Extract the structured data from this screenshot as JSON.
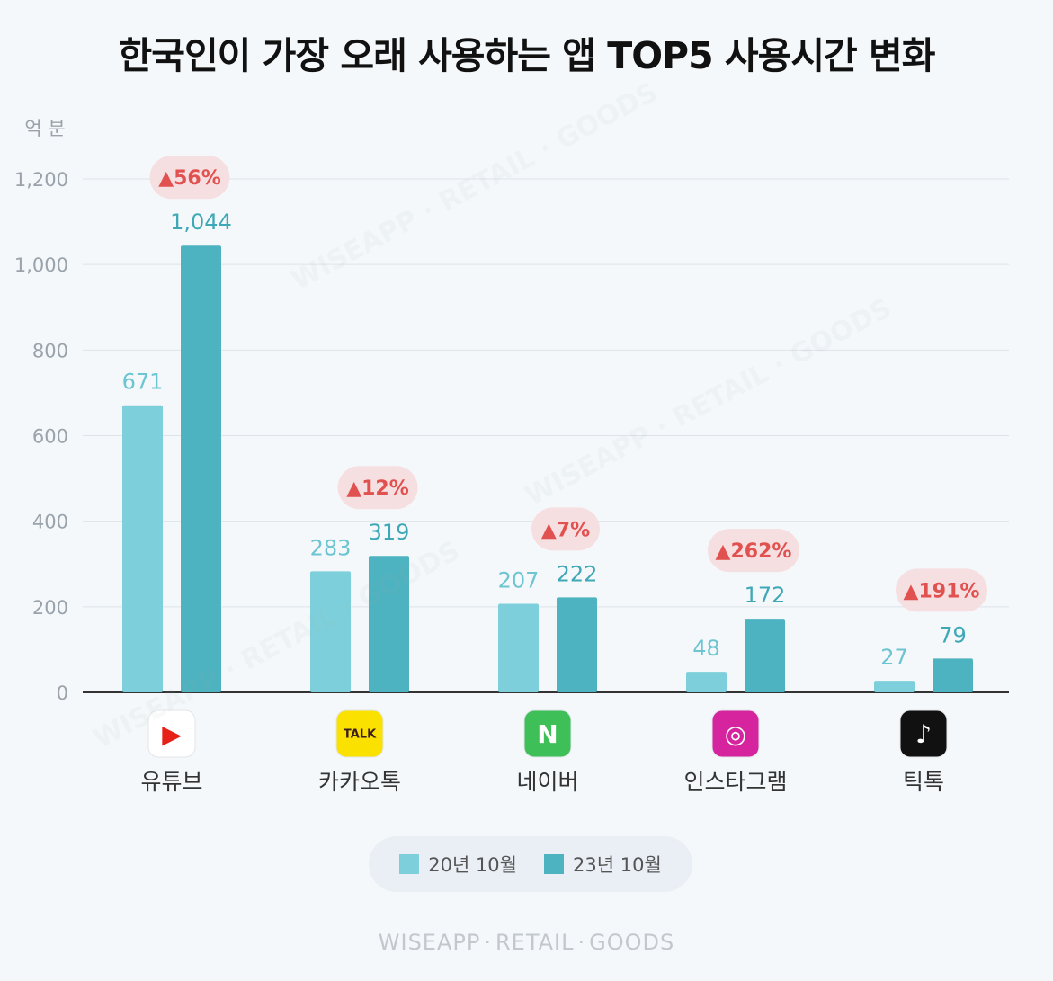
{
  "title": "한국인이 가장 오래 사용하는 앱 TOP5 사용시간 변화",
  "chart_data": {
    "type": "bar",
    "title": "한국인이 가장 오래 사용하는 앱 TOP5 사용시간 변화",
    "ylabel": "억 분",
    "xlabel": "",
    "ylim": [
      0,
      1200
    ],
    "yticks": [
      "1,200",
      "1,000",
      "800",
      "600",
      "400",
      "200",
      "0"
    ],
    "categories": [
      "유튜브",
      "카카오톡",
      "네이버",
      "인스타그램",
      "틱톡"
    ],
    "series": [
      {
        "name": "20년 10월",
        "values": [
          671,
          283,
          207,
          48,
          27
        ],
        "labels": [
          "671",
          "283",
          "207",
          "48",
          "27"
        ],
        "color": "#7dd0db"
      },
      {
        "name": "23년 10월",
        "values": [
          1044,
          319,
          222,
          172,
          79
        ],
        "labels": [
          "1,044",
          "319",
          "222",
          "172",
          "79"
        ],
        "color": "#4eb3c0"
      }
    ],
    "change": [
      "56%",
      "12%",
      "7%",
      "262%",
      "191%"
    ],
    "change_color": "#e0514f",
    "grid": true
  },
  "apps": [
    {
      "icon": "youtube-icon",
      "icon_text": "▶",
      "bg": "#ffffff",
      "fg": "#e62117"
    },
    {
      "icon": "kakaotalk-icon",
      "icon_text": "TALK",
      "bg": "#fae100",
      "fg": "#3b1e1e"
    },
    {
      "icon": "naver-icon",
      "icon_text": "N",
      "bg": "#3fbf58",
      "fg": "#ffffff"
    },
    {
      "icon": "instagram-icon",
      "icon_text": "◎",
      "bg": "#d6249f",
      "fg": "#ffffff"
    },
    {
      "icon": "tiktok-icon",
      "icon_text": "♪",
      "bg": "#111111",
      "fg": "#ffffff"
    }
  ],
  "legend": {
    "item1": "20년 10월",
    "item2": "23년 10월"
  },
  "footer": {
    "part1": "WISEAPP",
    "sep": "·",
    "part2": "RETAIL",
    "part3": "GOODS"
  },
  "watermark": "WISEAPP · RETAIL · GOODS"
}
